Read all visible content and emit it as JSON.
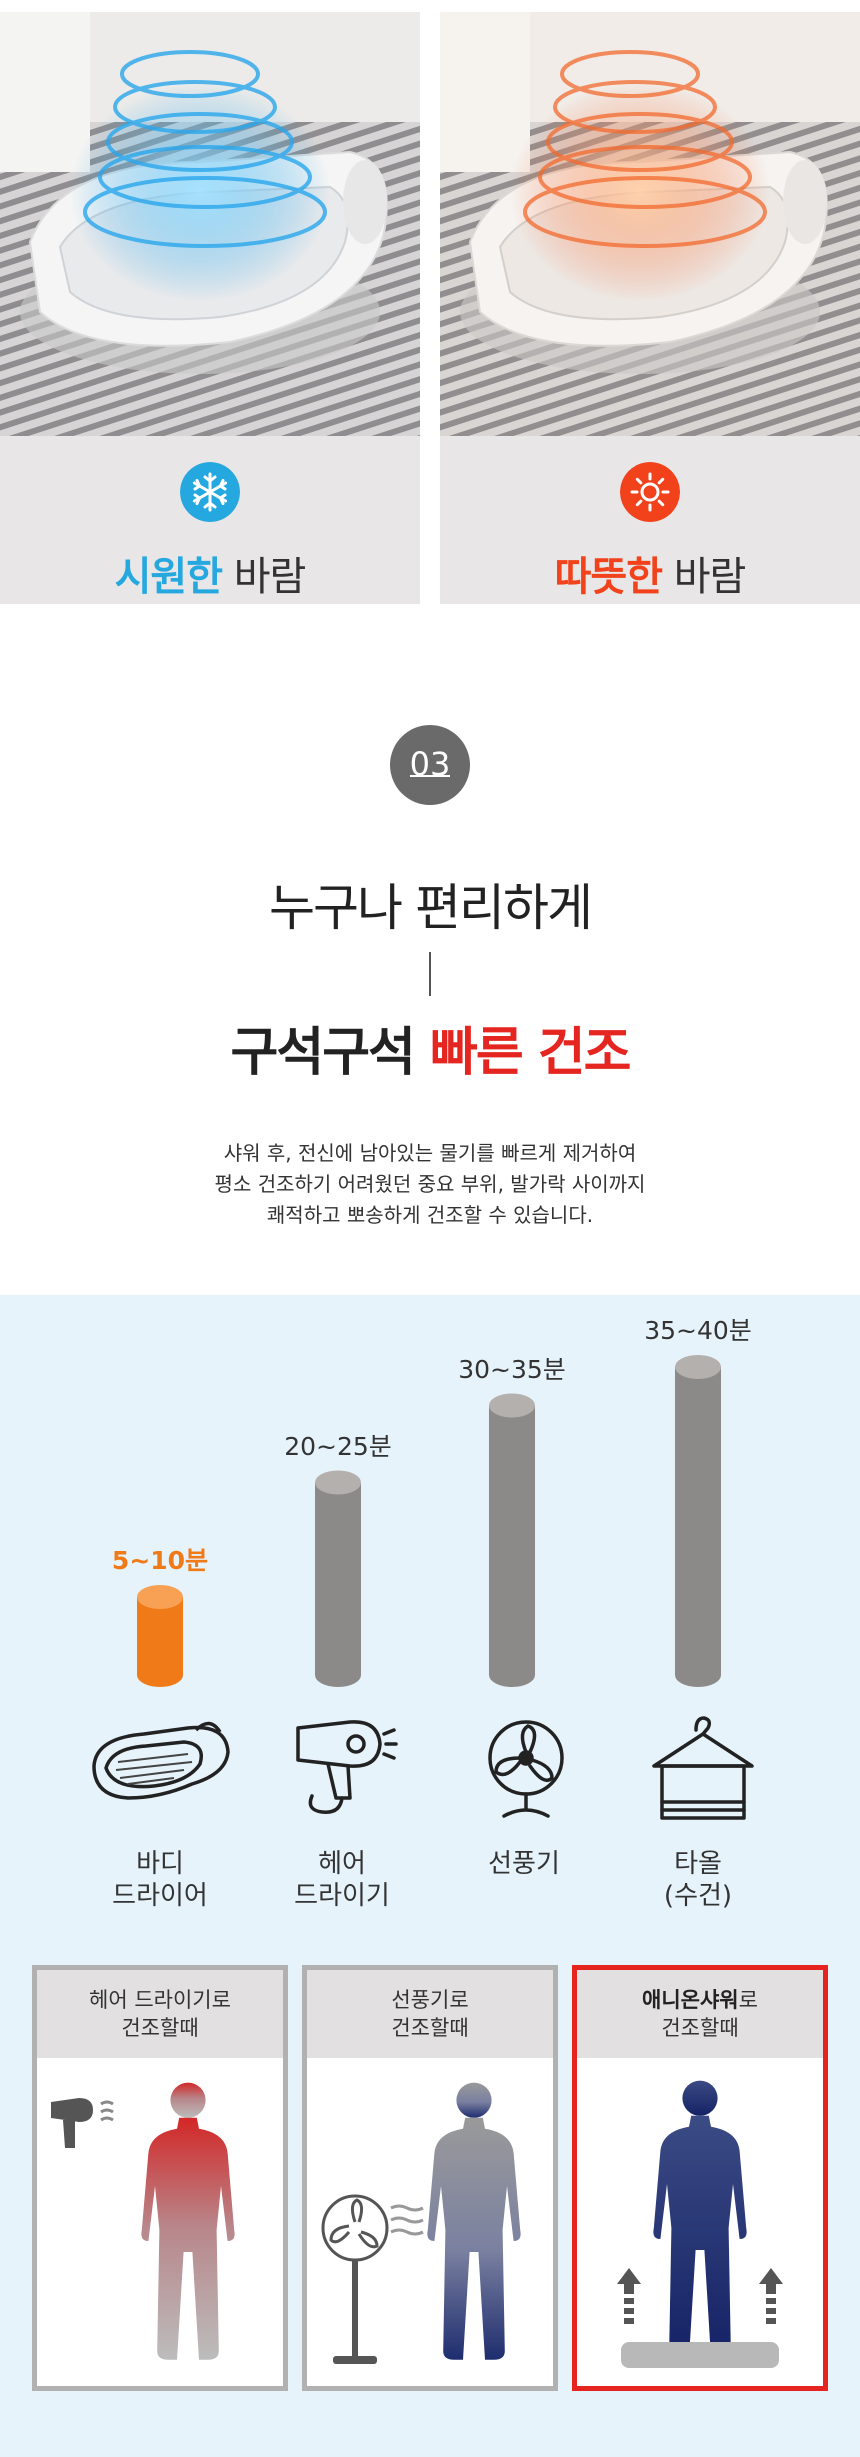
{
  "modes": {
    "cool": {
      "highlight": "시원한",
      "rest": " 바람",
      "icon": "snowflake-icon",
      "color": "#25a8df"
    },
    "warm": {
      "highlight": "따뜻한",
      "rest": " 바람",
      "icon": "sun-icon",
      "color": "#f1421c"
    }
  },
  "section": {
    "number": "03",
    "subtitle": "누구나 편리하게",
    "title_plain": "구석구석 ",
    "title_highlight": "빠른 건조",
    "desc_lines": [
      "샤워 후, 전신에 남아있는 물기를 빠르게 제거하여",
      "평소 건조하기 어려웠던 중요 부위, 발가락 사이까지",
      "쾌적하고 뽀송하게 건조할 수 있습니다."
    ]
  },
  "chart_data": {
    "type": "bar",
    "categories": [
      "바디 드라이어",
      "헤어 드라이기",
      "선풍기",
      "타올 (수건)"
    ],
    "values": [
      [
        5,
        10
      ],
      [
        20,
        25
      ],
      [
        30,
        35
      ],
      [
        35,
        40
      ]
    ],
    "value_labels": [
      "5~10분",
      "20~25분",
      "30~35분",
      "35~40분"
    ],
    "highlight_index": 0,
    "colors": {
      "highlight": "#f07a18",
      "normal": "#8c8a88"
    }
  },
  "devices": [
    {
      "line1": "바디",
      "line2": "드라이어",
      "icon": "body-dryer-icon"
    },
    {
      "line1": "헤어",
      "line2": "드라이기",
      "icon": "hair-dryer-icon"
    },
    {
      "line1": "선풍기",
      "line2": "",
      "icon": "fan-icon"
    },
    {
      "line1": "타올",
      "line2": "(수건)",
      "icon": "towel-icon"
    }
  ],
  "cases": [
    {
      "bold": "",
      "line1_rest": "헤어 드라이기로",
      "line2": "건조할때"
    },
    {
      "bold": "",
      "line1_rest": "선풍기로",
      "line2": "건조할때"
    },
    {
      "bold": "애니온샤워",
      "line1_rest": "로",
      "line2": "건조할때"
    }
  ]
}
